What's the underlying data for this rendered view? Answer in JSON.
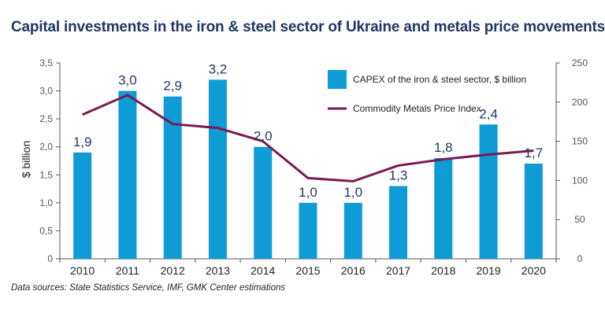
{
  "title": "Capital investments in the iron & steel sector of Ukraine and metals price movements",
  "source": "Data sources: State Statistics Service, IMF, GMK Center estimations",
  "colors": {
    "bar": "#0f9bd5",
    "line": "#7b1a52",
    "title": "#1f3864",
    "axis": "#555555"
  },
  "chart_data": {
    "type": "bar",
    "categories": [
      "2010",
      "2011",
      "2012",
      "2013",
      "2014",
      "2015",
      "2016",
      "2017",
      "2018",
      "2019",
      "2020"
    ],
    "series": [
      {
        "name": "CAPEX of the iron & steel sector, $ billion",
        "type": "bar",
        "axis": "left",
        "values": [
          1.9,
          3.0,
          2.9,
          3.2,
          2.0,
          1.0,
          1.0,
          1.3,
          1.8,
          2.4,
          1.7
        ],
        "labels": [
          "1,9",
          "3,0",
          "2,9",
          "3,2",
          "2,0",
          "1,0",
          "1,0",
          "1,3",
          "1,8",
          "2,4",
          "1,7"
        ]
      },
      {
        "name": "Commodity Metals Price Index",
        "type": "line",
        "axis": "right",
        "values": [
          184,
          209,
          172,
          167,
          150,
          103,
          99,
          119,
          127,
          133,
          138
        ]
      }
    ],
    "ylabel": "$ billion",
    "ylim": [
      0,
      3.5
    ],
    "y_ticks": [
      "0",
      "0,5",
      "1,0",
      "1,5",
      "2,0",
      "2,5",
      "3,0",
      "3,5"
    ],
    "y2lim": [
      0,
      250
    ],
    "y2_ticks": [
      "0",
      "50",
      "100",
      "150",
      "200",
      "250"
    ],
    "legend_position": "top-right",
    "grid": false
  }
}
